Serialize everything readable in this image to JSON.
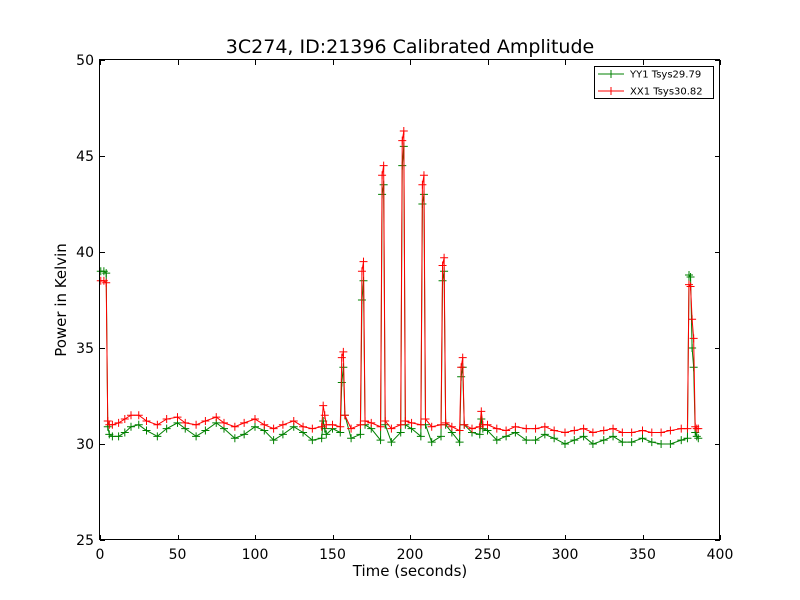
{
  "chart_data": {
    "type": "line",
    "title": "3C274, ID:21396 Calibrated Amplitude",
    "xlabel": "Time (seconds)",
    "ylabel": "Power in Kelvin",
    "xlim": [
      0,
      400
    ],
    "ylim": [
      25,
      50
    ],
    "xticks": [
      0,
      50,
      100,
      150,
      200,
      250,
      300,
      350,
      400
    ],
    "yticks": [
      25,
      30,
      35,
      40,
      45,
      50
    ],
    "grid": false,
    "legend_position": "top-right",
    "marker": "+",
    "series": [
      {
        "name": "YY1 Tsys29.79",
        "color": "#008000",
        "x": [
          0.5,
          2.5,
          4,
          5,
          6,
          8,
          12,
          16,
          20,
          25,
          30,
          37,
          43,
          50,
          55,
          62,
          68,
          75,
          80,
          87,
          93,
          100,
          106,
          112,
          118,
          125,
          131,
          137,
          143,
          144,
          145,
          146,
          150,
          155,
          156,
          157,
          158,
          162,
          168,
          169,
          170,
          171,
          175,
          181,
          182,
          183,
          184,
          188,
          194,
          195,
          196,
          197,
          201,
          207,
          208,
          209,
          210,
          214,
          220,
          221,
          222,
          223,
          227,
          232,
          233,
          234,
          235,
          240,
          245,
          246,
          247,
          250,
          256,
          262,
          268,
          275,
          281,
          287,
          293,
          300,
          306,
          312,
          318,
          325,
          331,
          337,
          343,
          350,
          356,
          362,
          368,
          375,
          379,
          380,
          381,
          382,
          383,
          384,
          385,
          386
        ],
        "y": [
          39.0,
          39.0,
          38.9,
          30.9,
          30.5,
          30.4,
          30.4,
          30.6,
          30.9,
          31.0,
          30.7,
          30.4,
          30.8,
          31.1,
          30.8,
          30.4,
          30.7,
          31.1,
          30.8,
          30.3,
          30.5,
          30.9,
          30.7,
          30.2,
          30.5,
          30.9,
          30.6,
          30.2,
          30.3,
          31.2,
          30.8,
          30.5,
          30.8,
          30.6,
          33.2,
          34.0,
          31.5,
          30.3,
          30.5,
          37.5,
          38.5,
          31.0,
          30.8,
          30.2,
          43.0,
          43.5,
          31.0,
          30.1,
          30.6,
          44.5,
          45.5,
          31.0,
          30.8,
          30.4,
          42.5,
          43.0,
          31.0,
          30.1,
          30.4,
          38.5,
          39.0,
          31.0,
          30.6,
          30.1,
          33.5,
          34.0,
          31.0,
          30.6,
          30.5,
          31.3,
          30.8,
          30.7,
          30.2,
          30.4,
          30.6,
          30.2,
          30.2,
          30.5,
          30.3,
          30.0,
          30.2,
          30.4,
          30.0,
          30.2,
          30.4,
          30.1,
          30.1,
          30.3,
          30.1,
          30.0,
          30.0,
          30.2,
          30.3,
          38.8,
          38.7,
          35.0,
          34.0,
          30.6,
          30.4,
          30.3
        ]
      },
      {
        "name": "XX1 Tsys30.82",
        "color": "#ff0000",
        "x": [
          0.5,
          2.5,
          4,
          5,
          6,
          8,
          12,
          16,
          20,
          25,
          30,
          37,
          43,
          50,
          55,
          62,
          68,
          75,
          80,
          87,
          93,
          100,
          106,
          112,
          118,
          125,
          131,
          137,
          143,
          144,
          145,
          146,
          150,
          155,
          156,
          157,
          158,
          162,
          168,
          169,
          170,
          171,
          175,
          181,
          182,
          183,
          184,
          188,
          194,
          195,
          196,
          197,
          201,
          207,
          208,
          209,
          210,
          214,
          220,
          221,
          222,
          223,
          227,
          232,
          233,
          234,
          235,
          240,
          245,
          246,
          247,
          250,
          256,
          262,
          268,
          275,
          281,
          287,
          293,
          300,
          306,
          312,
          318,
          325,
          331,
          337,
          343,
          350,
          356,
          362,
          368,
          375,
          379,
          380,
          381,
          382,
          383,
          384,
          385,
          386
        ],
        "y": [
          38.5,
          38.5,
          38.4,
          31.2,
          31.0,
          31.0,
          31.1,
          31.3,
          31.5,
          31.5,
          31.2,
          31.0,
          31.3,
          31.4,
          31.1,
          31.0,
          31.2,
          31.4,
          31.1,
          30.9,
          31.1,
          31.3,
          31.0,
          30.8,
          31.0,
          31.2,
          30.9,
          30.8,
          30.9,
          32.0,
          31.5,
          31.0,
          31.0,
          30.9,
          34.5,
          34.8,
          31.5,
          30.8,
          31.0,
          39.0,
          39.5,
          31.2,
          31.1,
          30.9,
          44.0,
          44.5,
          31.2,
          30.8,
          31.0,
          45.8,
          46.3,
          31.2,
          31.1,
          31.0,
          43.5,
          44.0,
          31.3,
          30.9,
          31.0,
          39.3,
          39.7,
          31.1,
          30.9,
          30.7,
          34.0,
          34.5,
          31.0,
          30.8,
          30.9,
          31.7,
          31.0,
          31.0,
          30.8,
          30.7,
          30.9,
          30.8,
          30.8,
          30.9,
          30.7,
          30.6,
          30.7,
          30.8,
          30.6,
          30.7,
          30.8,
          30.6,
          30.6,
          30.7,
          30.6,
          30.6,
          30.7,
          30.8,
          30.8,
          38.3,
          38.2,
          36.5,
          35.5,
          30.9,
          30.8,
          30.8
        ]
      }
    ]
  }
}
